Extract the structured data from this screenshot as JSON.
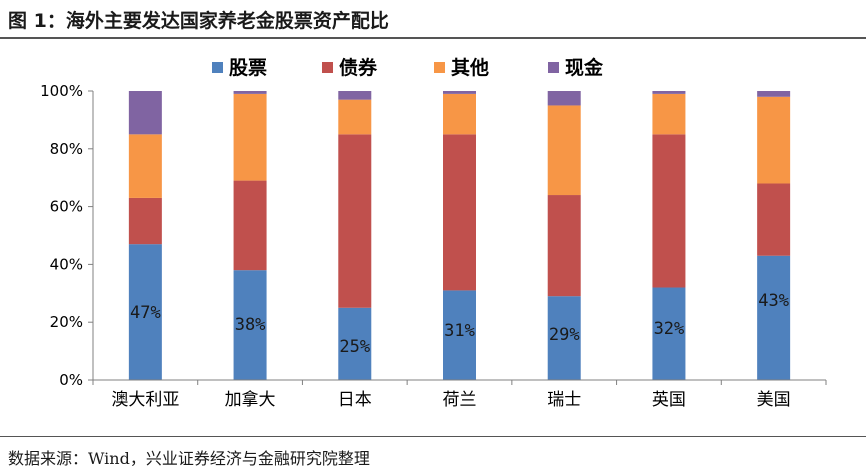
{
  "figure": {
    "title": "图 1：海外主要发达国家养老金股票资产配比",
    "source": "数据来源：Wind，兴业证券经济与金融研究院整理"
  },
  "colors": {
    "stock": "#4F81BD",
    "bond": "#C0504D",
    "other": "#F79646",
    "cash": "#8064A2",
    "axis": "#808080"
  },
  "chart_data": {
    "type": "bar",
    "stacked": true,
    "title": "",
    "xlabel": "",
    "ylabel": "",
    "ylim": [
      0,
      100
    ],
    "yticks": [
      "0%",
      "20%",
      "40%",
      "60%",
      "80%",
      "100%"
    ],
    "legend_position": "top",
    "categories": [
      "澳大利亚",
      "加拿大",
      "日本",
      "荷兰",
      "瑞士",
      "英国",
      "美国"
    ],
    "series": [
      {
        "name": "股票",
        "color_key": "stock",
        "values": [
          47,
          38,
          25,
          31,
          29,
          32,
          43
        ]
      },
      {
        "name": "债券",
        "color_key": "bond",
        "values": [
          16,
          31,
          60,
          54,
          35,
          53,
          25
        ]
      },
      {
        "name": "其他",
        "color_key": "other",
        "values": [
          22,
          30,
          12,
          14,
          31,
          14,
          30
        ]
      },
      {
        "name": "现金",
        "color_key": "cash",
        "values": [
          15,
          1,
          3,
          1,
          5,
          1,
          2
        ]
      }
    ],
    "data_labels": [
      "47%",
      "38%",
      "25%",
      "31%",
      "29%",
      "32%",
      "43%"
    ]
  }
}
